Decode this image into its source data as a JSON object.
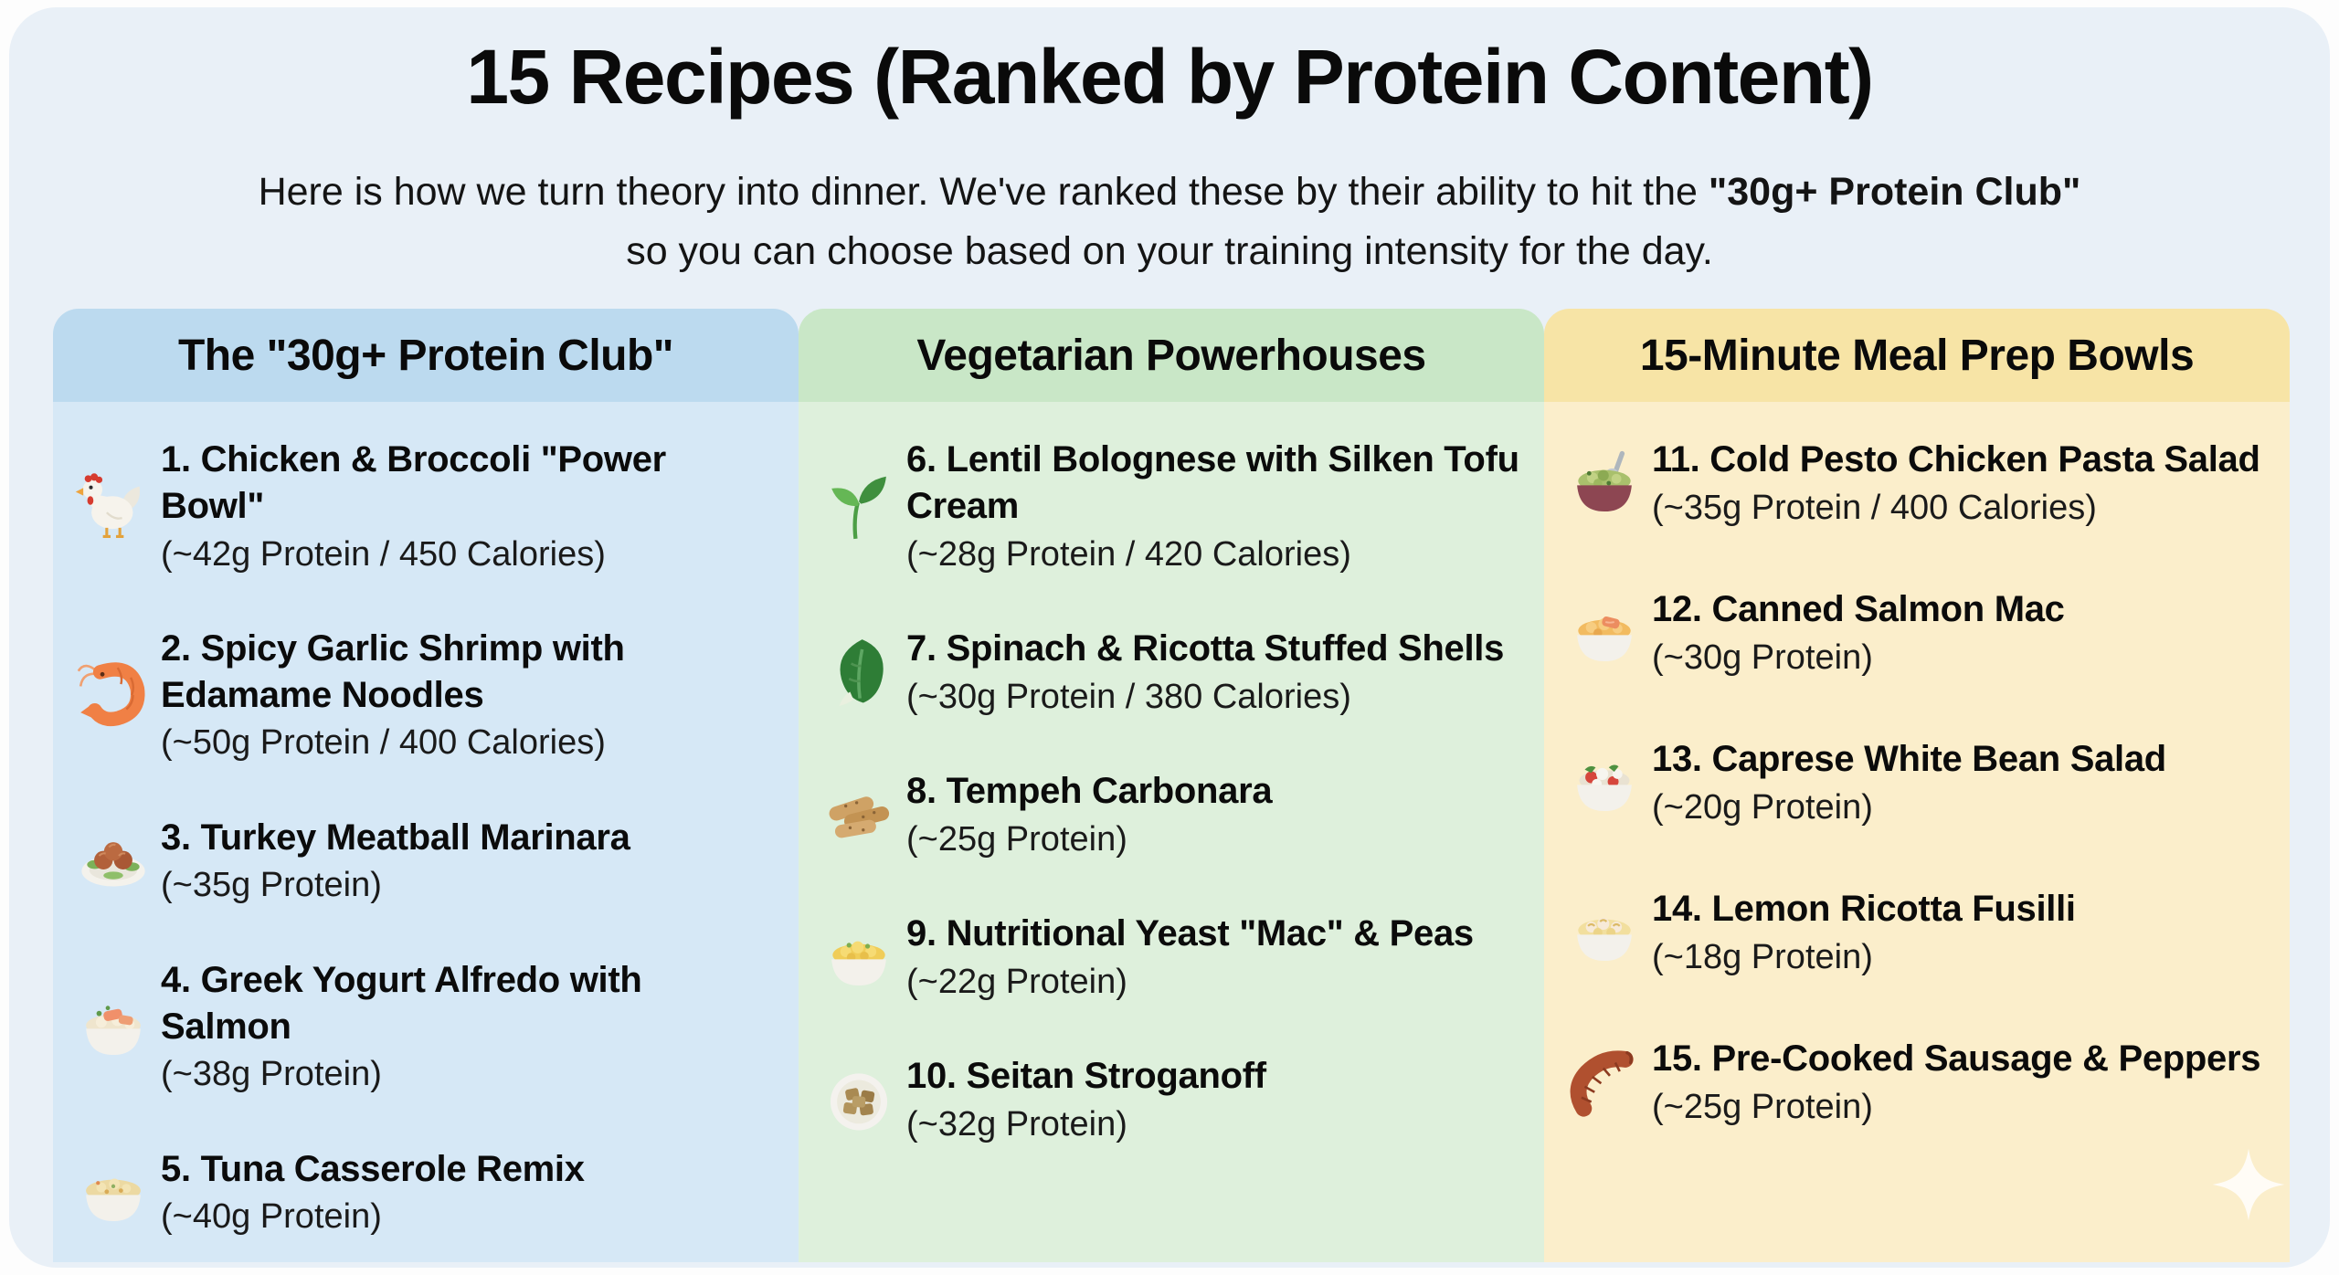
{
  "page": {
    "title": "15 Recipes (Ranked by Protein Content)",
    "subtitle_prefix": "Here is how we turn theory into dinner. We've ranked these by their ability to hit the ",
    "subtitle_bold": "\"30g+ Protein Club\"",
    "subtitle_line2": "so you can choose based on your training intensity for the day.",
    "canvas_bg": "#e9f0f7",
    "sparkle_color": "#ffffff"
  },
  "columns": [
    {
      "id": "protein-club",
      "header": "The \"30g+ Protein Club\"",
      "header_bg": "#bcdaef",
      "body_bg": "#d6e8f6",
      "items": [
        {
          "icon": "chicken-icon",
          "title": "1. Chicken & Broccoli \"Power Bowl\"",
          "stats": "(~42g Protein / 450 Calories)"
        },
        {
          "icon": "shrimp-icon",
          "title": "2. Spicy Garlic Shrimp with Edamame Noodles",
          "stats": "(~50g Protein / 400 Calories)"
        },
        {
          "icon": "meatballs-plate-icon",
          "title": "3. Turkey Meatball Marinara",
          "stats": "(~35g Protein)"
        },
        {
          "icon": "salmon-alfredo-bowl-icon",
          "title": "4. Greek Yogurt Alfredo with Salmon",
          "stats": "(~38g Protein)"
        },
        {
          "icon": "tuna-casserole-bowl-icon",
          "title": "5. Tuna Casserole Remix",
          "stats": "(~40g Protein)"
        }
      ]
    },
    {
      "id": "vegetarian-powerhouses",
      "header": "Vegetarian Powerhouses",
      "header_bg": "#c9e7c7",
      "body_bg": "#def0dc",
      "items": [
        {
          "icon": "seedling-icon",
          "title": "6. Lentil Bolognese with Silken Tofu Cream",
          "stats": "(~28g Protein / 420 Calories)"
        },
        {
          "icon": "leafy-green-icon",
          "title": "7. Spinach & Ricotta Stuffed Shells",
          "stats": "(~30g Protein / 380 Calories)"
        },
        {
          "icon": "tempeh-icon",
          "title": "8. Tempeh Carbonara",
          "stats": "(~25g Protein)"
        },
        {
          "icon": "mac-peas-bowl-icon",
          "title": "9. Nutritional Yeast \"Mac\" & Peas",
          "stats": "(~22g Protein)"
        },
        {
          "icon": "seitan-plate-icon",
          "title": "10. Seitan Stroganoff",
          "stats": "(~32g Protein)"
        }
      ]
    },
    {
      "id": "meal-prep-bowls",
      "header": "15-Minute Meal Prep Bowls",
      "header_bg": "#f7e4a6",
      "body_bg": "#fbeecb",
      "items": [
        {
          "icon": "pesto-pasta-bowl-icon",
          "title": "11. Cold Pesto Chicken Pasta Salad",
          "stats": "(~35g Protein / 400 Calories)"
        },
        {
          "icon": "salmon-mac-bowl-icon",
          "title": "12. Canned Salmon Mac",
          "stats": "(~30g Protein)"
        },
        {
          "icon": "caprese-bowl-icon",
          "title": "13. Caprese White Bean Salad",
          "stats": "(~20g Protein)"
        },
        {
          "icon": "fusilli-bowl-icon",
          "title": "14. Lemon Ricotta Fusilli",
          "stats": "(~18g Protein)"
        },
        {
          "icon": "sausage-icon",
          "title": "15. Pre-Cooked Sausage & Peppers",
          "stats": "(~25g Protein)"
        }
      ]
    }
  ]
}
